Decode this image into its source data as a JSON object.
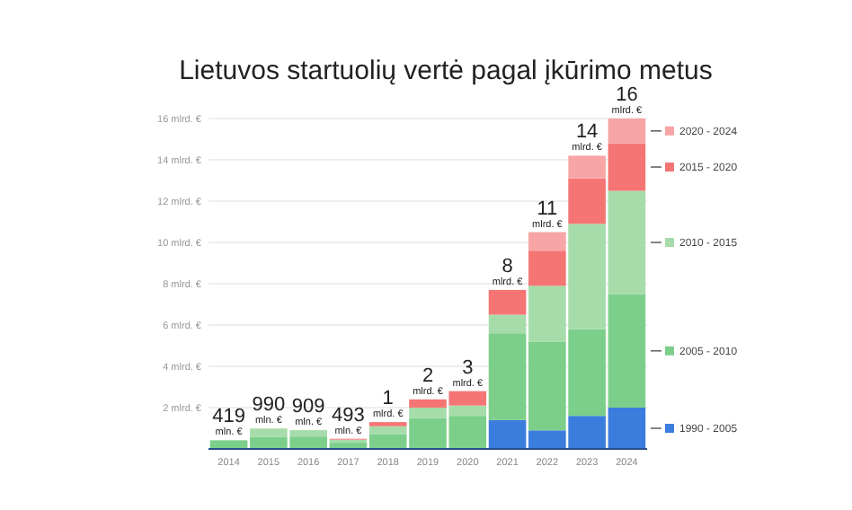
{
  "chart_data": {
    "type": "bar",
    "stacked": true,
    "title": "Lietuvos startuolių vertė pagal įkūrimo metus",
    "categories": [
      "2014",
      "2015",
      "2016",
      "2017",
      "2018",
      "2019",
      "2020",
      "2021",
      "2022",
      "2023",
      "2024"
    ],
    "series": [
      {
        "name": "1990 - 2005",
        "color": "#3b7ddd",
        "values": [
          0,
          0,
          0,
          0,
          0,
          0,
          0,
          1.4,
          0.9,
          1.6,
          2.0
        ]
      },
      {
        "name": "2005 - 2010",
        "color": "#7ccf8a",
        "values": [
          0.419,
          0.59,
          0.6,
          0.3,
          0.7,
          1.5,
          1.6,
          4.2,
          4.3,
          4.2,
          5.5
        ]
      },
      {
        "name": "2010 - 2015",
        "color": "#a6dca9",
        "values": [
          0,
          0.4,
          0.309,
          0.15,
          0.4,
          0.5,
          0.5,
          0.9,
          2.7,
          5.1,
          5.0
        ]
      },
      {
        "name": "2015 - 2020",
        "color": "#f57575",
        "values": [
          0,
          0,
          0,
          0.043,
          0.2,
          0.4,
          0.7,
          1.2,
          1.7,
          2.2,
          2.3
        ]
      },
      {
        "name": "2020 - 2024",
        "color": "#f8a5a5",
        "values": [
          0,
          0,
          0,
          0,
          0,
          0,
          0,
          0,
          0.9,
          1.1,
          1.2
        ]
      }
    ],
    "totals": [
      "419 mln. €",
      "990 mln. €",
      "909 mln. €",
      "493 mln. €",
      "1 mlrd. €",
      "2 mlrd. €",
      "3 mlrd. €",
      "8 mlrd. €",
      "11 mlrd. €",
      "14 mlrd. €",
      "16 mlrd. €"
    ],
    "ylim": [
      0,
      16
    ],
    "yticks": [
      {
        "value": 2,
        "label": "2 mlrd. €"
      },
      {
        "value": 4,
        "label": "4 mlrd. €"
      },
      {
        "value": 6,
        "label": "6 mlrd. €"
      },
      {
        "value": 8,
        "label": "8 mlrd. €"
      },
      {
        "value": 10,
        "label": "10 mlrd. €"
      },
      {
        "value": 12,
        "label": "12 mlrd. €"
      },
      {
        "value": 14,
        "label": "14 mlrd. €"
      },
      {
        "value": 16,
        "label": "16 mlrd. €"
      }
    ],
    "grid": "y",
    "legend": "right"
  }
}
